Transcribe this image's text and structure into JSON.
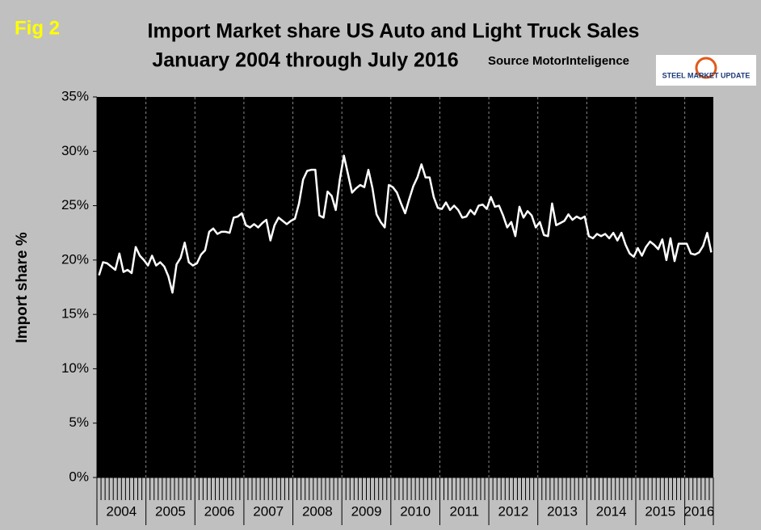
{
  "chart_data": {
    "type": "line",
    "fig_label": "Fig 2",
    "title": "Import Market share US Auto and Light Truck Sales",
    "subtitle": "January 2004 through July 2016",
    "source": "Source MotorInteligence",
    "logo": "STEEL MARKET UPDATE",
    "ylabel": "Import share %",
    "categories": [
      "2004",
      null,
      null,
      null,
      null,
      null,
      null,
      null,
      null,
      null,
      null,
      null,
      "2005",
      null,
      null,
      null,
      null,
      null,
      null,
      null,
      null,
      null,
      null,
      null,
      "2006",
      null,
      null,
      null,
      null,
      null,
      null,
      null,
      null,
      null,
      null,
      null,
      "2007",
      null,
      null,
      null,
      null,
      null,
      null,
      null,
      null,
      null,
      null,
      null,
      "2008",
      null,
      null,
      null,
      null,
      null,
      null,
      null,
      null,
      null,
      null,
      null,
      "2009",
      null,
      null,
      null,
      null,
      null,
      null,
      null,
      null,
      null,
      null,
      null,
      "2010",
      null,
      null,
      null,
      null,
      null,
      null,
      null,
      null,
      null,
      null,
      null,
      "2011",
      null,
      null,
      null,
      null,
      null,
      null,
      null,
      null,
      null,
      null,
      null,
      "2012",
      null,
      null,
      null,
      null,
      null,
      null,
      null,
      null,
      null,
      null,
      null,
      "2013",
      null,
      null,
      null,
      null,
      null,
      null,
      null,
      null,
      null,
      null,
      null,
      "2014",
      null,
      null,
      null,
      null,
      null,
      null,
      null,
      null,
      null,
      null,
      null,
      "2015",
      null,
      null,
      null,
      null,
      null,
      null,
      null,
      null,
      null,
      null,
      null,
      "2016",
      null,
      null,
      null,
      null,
      null,
      null
    ],
    "series": [
      {
        "name": "Import share",
        "color": "#ffffff",
        "values": [
          18.6,
          19.8,
          19.7,
          19.4,
          19.1,
          20.6,
          18.9,
          19.1,
          18.8,
          21.2,
          20.4,
          20.0,
          19.5,
          20.4,
          19.5,
          19.8,
          19.4,
          18.5,
          17.0,
          19.6,
          20.2,
          21.6,
          19.8,
          19.5,
          19.7,
          20.5,
          20.9,
          22.6,
          22.9,
          22.4,
          22.6,
          22.6,
          22.5,
          23.9,
          24.0,
          24.3,
          23.2,
          23.0,
          23.3,
          23.0,
          23.4,
          23.7,
          21.8,
          23.2,
          23.9,
          23.6,
          23.3,
          23.6,
          23.8,
          25.2,
          27.4,
          28.2,
          28.3,
          28.3,
          24.1,
          23.9,
          26.3,
          25.9,
          24.6,
          27.4,
          29.6,
          27.9,
          26.2,
          26.6,
          26.9,
          26.7,
          28.3,
          26.6,
          24.2,
          23.5,
          23.0,
          26.9,
          26.7,
          26.2,
          25.2,
          24.3,
          25.6,
          26.8,
          27.6,
          28.8,
          27.6,
          27.6,
          25.8,
          24.8,
          24.7,
          25.3,
          24.6,
          25.0,
          24.6,
          23.9,
          24.0,
          24.6,
          24.2,
          25.0,
          25.1,
          24.7,
          25.8,
          24.9,
          25.0,
          24.1,
          23.0,
          23.5,
          22.2,
          24.9,
          23.9,
          24.5,
          24.1,
          23.0,
          23.5,
          22.3,
          22.2,
          25.2,
          23.2,
          23.4,
          23.6,
          24.2,
          23.7,
          24.0,
          23.8,
          24.0,
          22.2,
          22.0,
          22.4,
          22.2,
          22.4,
          22.0,
          22.5,
          21.8,
          22.5,
          21.4,
          20.6,
          20.3,
          21.1,
          20.4,
          21.2,
          21.7,
          21.4,
          21.0,
          21.9,
          20.0,
          22.0,
          19.9,
          21.5,
          21.5,
          21.5,
          20.6,
          20.5,
          20.7,
          21.3,
          22.5,
          20.7
        ]
      }
    ],
    "ylim": [
      0,
      35
    ],
    "yticks": [
      {
        "value": 0,
        "label": "0%"
      },
      {
        "value": 5,
        "label": "5%"
      },
      {
        "value": 10,
        "label": "10%"
      },
      {
        "value": 15,
        "label": "15%"
      },
      {
        "value": 20,
        "label": "20%"
      },
      {
        "value": 25,
        "label": "25%"
      },
      {
        "value": 30,
        "label": "30%"
      },
      {
        "value": 35,
        "label": "35%"
      }
    ],
    "xgrid": true,
    "plot_background": "#000000"
  }
}
